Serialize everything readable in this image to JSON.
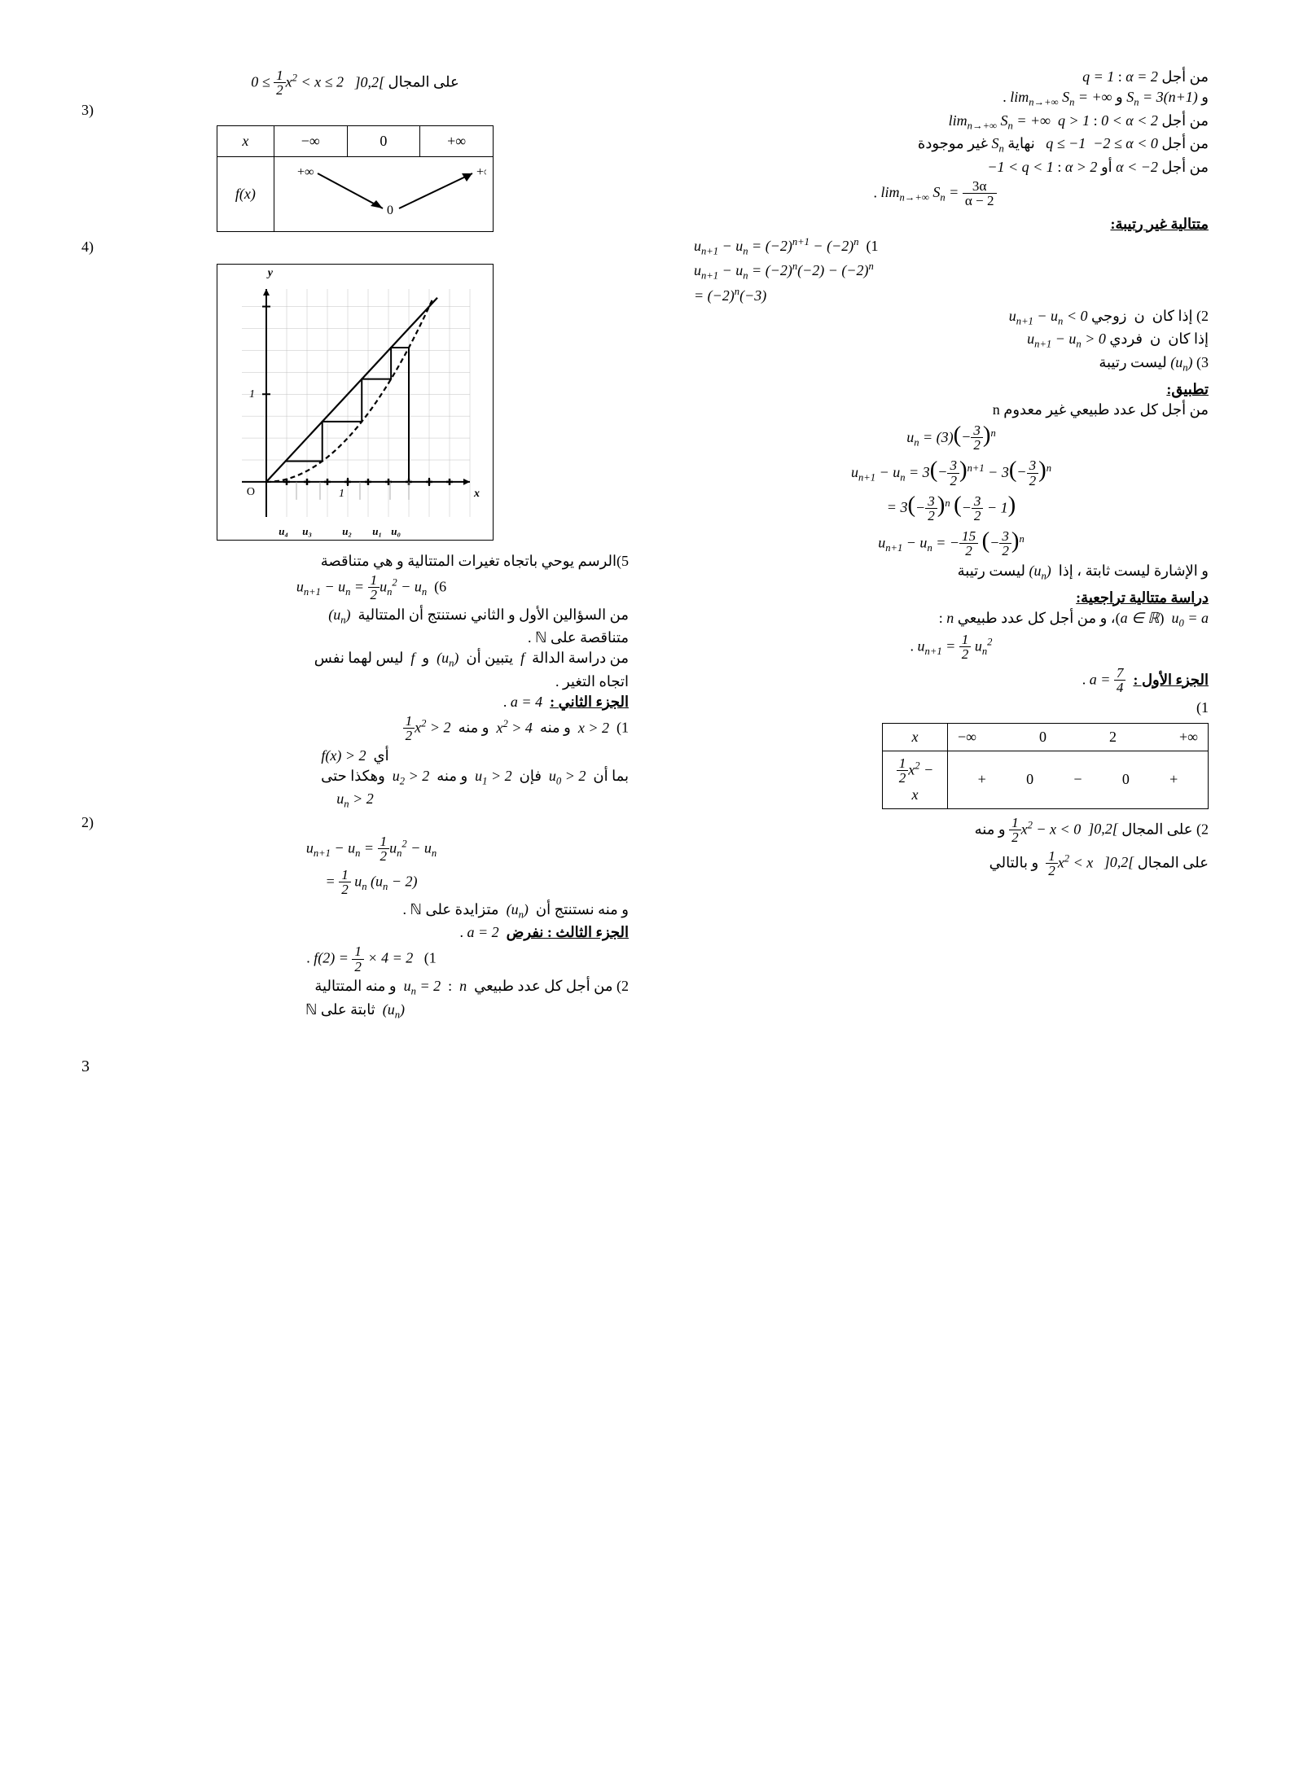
{
  "pageNumber": "3",
  "rightCol": {
    "l1": "من أجل α = 2 : q = 1",
    "l2_a": "و S_n = 3(n+1) و",
    "l2_b": "lim_{n→+∞} S_n = +∞",
    "l3": "من أجل 0 < α < 2 :  q > 1  lim_{n→+∞} S_n = +∞",
    "l4": "من أجل −2 ≤ α < 0  q ≤ −1   نهاية S_n غير موجودة",
    "l5": "من أجل α < −2 أو α > 2 : −1 < q < 1",
    "l6_lim": "lim_{n→+∞} S_n =",
    "l6_frac_n": "3α",
    "l6_frac_d": "α − 2",
    "h1": "متتالية غير رتيبة:",
    "eq1": "1)  u_{n+1} − u_n = (−2)^{n+1} − (−2)^n",
    "eq2": "u_{n+1} − u_n = (−2)^n (−2) − (−2)^n",
    "eq3": "= (−2)^n (−3)",
    "l7": "2) إذا كان  n  زوجي  u_{n+1} − u_n < 0",
    "l8": "إذا كان  n  فردي  u_{n+1} − u_n > 0",
    "l9": "3) (u_n) ليست رتيبة",
    "h2": "تطبيق:",
    "l10": "من أجل كل عدد طبيعي غير معدوم n",
    "eq4": "u_n = (3)(−3/2)^n",
    "eq5": "u_{n+1} − u_n = 3(−3/2)^{n+1} − 3(−3/2)^n",
    "eq6": "= 3(−3/2)^n (−3/2 − 1)",
    "eq7": "u_{n+1} − u_n = −(15/2)(−3/2)^n",
    "l11": "و الإشارة ليست ثابتة ، إذا  (u_n)  ليست رتيبة",
    "h3": "دراسة متتالية تراجعية:",
    "l12": "u_0 = a  (a ∈ ℝ)، و من أجل كل عدد طبيعي n :",
    "eq8": "u_{n+1} = (1/2) u_n²",
    "h4": "الجزء الأول :",
    "h4v": "a = 7/4",
    "tbl_label": "1)",
    "signTable": {
      "header": [
        "x",
        "−∞",
        "",
        "0",
        "",
        "2",
        "",
        "+∞"
      ],
      "expr": "½x² − x",
      "signs": [
        "",
        "+",
        "0",
        "−",
        "0",
        "+",
        ""
      ]
    },
    "l13_a": "2) على المجال ]0,2[  ",
    "l13_b": "½x² − x < 0",
    "l13_c": " و منه",
    "l14_a": "على المجال ]0,2[   ",
    "l14_b": "½x² < x",
    "l14_c": "  و بالتالي"
  },
  "leftCol": {
    "l1_a": "على المجال ]0,2[   ",
    "l1_b": "0 ≤ ½x² < x ≤ 2",
    "tbl3_label": "3)",
    "varTable": {
      "header": [
        "x",
        "−∞",
        "0",
        "+∞"
      ],
      "fx": "f(x)",
      "topVals": [
        "+∞",
        "",
        "+∞"
      ],
      "botVal": "0"
    },
    "chart4_label": "4)",
    "chart": {
      "xmin": -0.3,
      "xmax": 2.5,
      "ymin": -0.4,
      "ymax": 2.2,
      "grid_step": 0.25,
      "axis_color": "#000000",
      "grid_color": "#c0c0c0",
      "curve_color": "#000000",
      "line_color": "#000000",
      "u_labels": [
        "u₄",
        "u₃",
        "u₂",
        "u₁",
        "u₀"
      ],
      "u_values": [
        0.37,
        0.66,
        1.15,
        1.52,
        1.75
      ],
      "tick_major": [
        1,
        2
      ]
    },
    "l5": "5)الرسم يوحي باتجاه تغيرات المتتالية و هي متناقصة",
    "eq6": "6)  u_{n+1} − u_n = ½u_n² − u_n",
    "l7": "من السؤالين الأول و الثاني نستنتج أن المتتالية  (u_n)",
    "l8": "متناقصة على ℕ .",
    "l9": "من دراسة الدالة  f  يتبين أن  (u_n)  و  f  ليس لهما نفس",
    "l10": "اتجاه التغير .",
    "h2": "الجزء الثاني :",
    "h2v": "a = 4",
    "l11": "1)  x > 2  و منه  x² > 4  و منه  ½x² > 2",
    "l12": "أي  f(x) > 2",
    "l13": "بما أن  u_0 > 2  فإن  u_1 > 2  و منه  u_2 > 2  وهكذا حتى",
    "l13b": "u_n > 2",
    "l14": "2)",
    "eq14a": "u_{n+1} − u_n = ½u_n² − u_n",
    "eq14b": "= ½ u_n (u_n − 2)",
    "l15": "و منه نستنتج أن  (u_n)  متزايدة على ℕ .",
    "h3": "الجزء الثالث : نفرض",
    "h3v": "a = 2",
    "eq16": "1)    f(2) = ½ × 4 = 2",
    "l17": "2) من أجل كل عدد طبيعي  n  :   u_n = 2   و منه المتتالية",
    "l18": "(u_n)  ثابتة على ℕ"
  }
}
